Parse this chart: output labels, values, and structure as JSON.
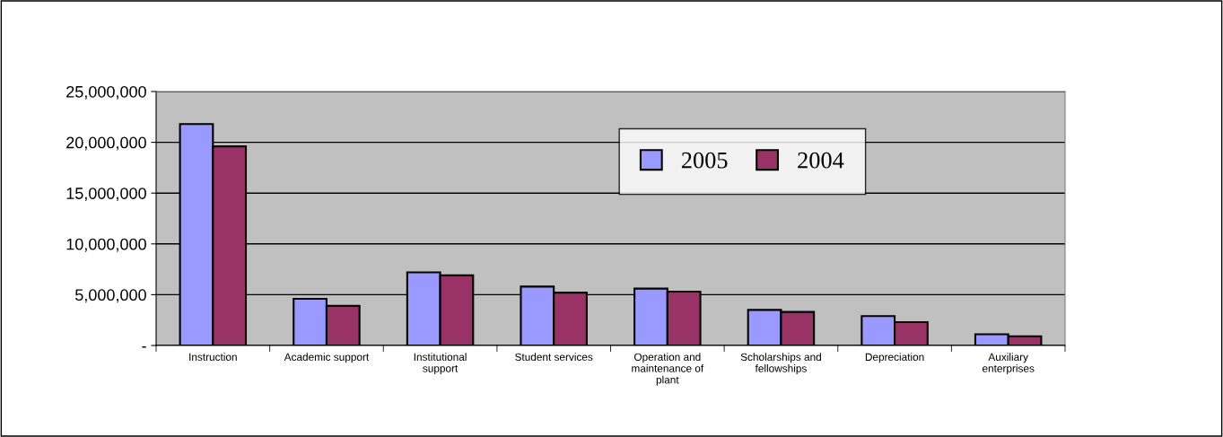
{
  "chart_data": {
    "type": "bar",
    "categories": [
      "Instruction",
      "Academic support",
      "Institutional\nsupport",
      "Student services",
      "Operation and\nmaintenance of\nplant",
      "Scholarships and\nfellowships",
      "Depreciation",
      "Auxiliary\nenterprises"
    ],
    "series": [
      {
        "name": "2005",
        "color": "#9999ff",
        "values": [
          21800000,
          4600000,
          7200000,
          5800000,
          5600000,
          3500000,
          2900000,
          1100000
        ]
      },
      {
        "name": "2004",
        "color": "#993366",
        "values": [
          19600000,
          3900000,
          6900000,
          5200000,
          5300000,
          3300000,
          2300000,
          900000
        ]
      }
    ],
    "ylim": [
      0,
      25000000
    ],
    "yticks": [
      {
        "value": 0,
        "label": "-"
      },
      {
        "value": 5000000,
        "label": "5,000,000"
      },
      {
        "value": 10000000,
        "label": "10,000,000"
      },
      {
        "value": 15000000,
        "label": "15,000,000"
      },
      {
        "value": 20000000,
        "label": "20,000,000"
      },
      {
        "value": 25000000,
        "label": "25,000,000"
      }
    ],
    "grid": "y",
    "legend": "top"
  }
}
